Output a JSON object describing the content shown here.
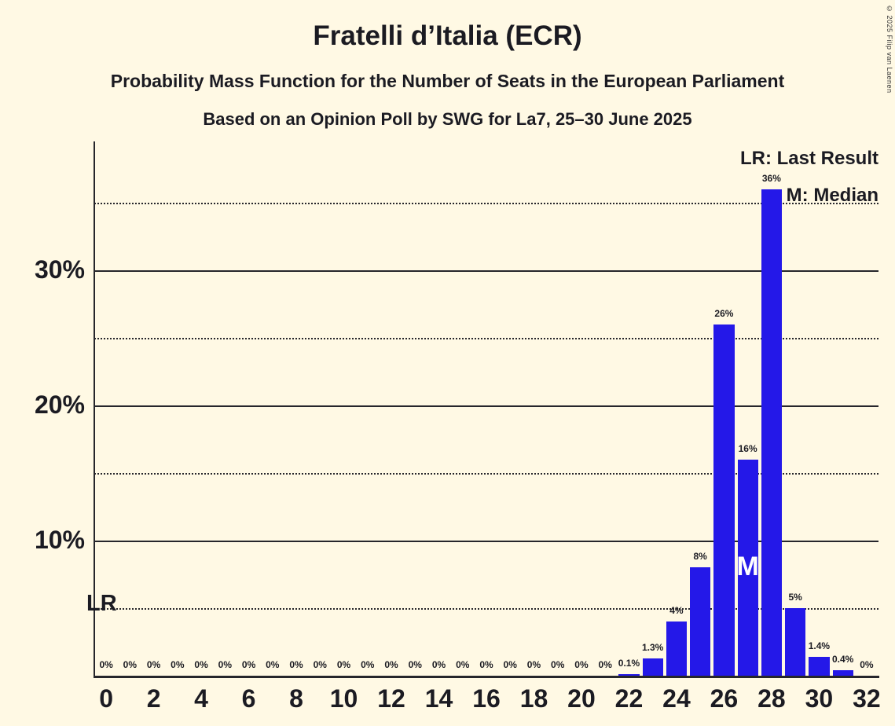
{
  "page": {
    "background": "#FFF9E4",
    "text_color": "#1B1B22",
    "copyright": "© 2025 Filip van Laenen"
  },
  "header": {
    "title": "Fratelli d’Italia (ECR)",
    "subtitle_line1": "Probability Mass Function for the Number of Seats in the European Parliament",
    "subtitle_line2": "Based on an Opinion Poll by SWG for La7, 25–30 June 2025"
  },
  "legend": {
    "last_result": "LR: Last Result",
    "median": "M: Median"
  },
  "chart_data": {
    "type": "bar",
    "title": "Fratelli d’Italia (ECR) — Probability Mass Function for the Number of Seats in the European Parliament",
    "xlabel": "Number of seats",
    "ylabel": "Probability mass",
    "ylim": [
      0,
      39.5
    ],
    "grid": true,
    "bar_color": "#2418E8",
    "categories": [
      0,
      1,
      2,
      3,
      4,
      5,
      6,
      7,
      8,
      9,
      10,
      11,
      12,
      13,
      14,
      15,
      16,
      17,
      18,
      19,
      20,
      21,
      22,
      23,
      24,
      25,
      26,
      27,
      28,
      29,
      30,
      31,
      32
    ],
    "values": [
      0,
      0,
      0,
      0,
      0,
      0,
      0,
      0,
      0,
      0,
      0,
      0,
      0,
      0,
      0,
      0,
      0,
      0,
      0,
      0,
      0,
      0,
      0.1,
      1.3,
      4,
      8,
      26,
      16,
      36,
      5,
      1.4,
      0.4,
      0
    ],
    "bar_labels": [
      "0%",
      "0%",
      "0%",
      "0%",
      "0%",
      "0%",
      "0%",
      "0%",
      "0%",
      "0%",
      "0%",
      "0%",
      "0%",
      "0%",
      "0%",
      "0%",
      "0%",
      "0%",
      "0%",
      "0%",
      "0%",
      "0%",
      "0.1%",
      "1.3%",
      "4%",
      "8%",
      "26%",
      "16%",
      "36%",
      "5%",
      "1.4%",
      "0.4%",
      "0%"
    ],
    "x_tick_labels": [
      "0",
      "2",
      "4",
      "6",
      "8",
      "10",
      "12",
      "14",
      "16",
      "18",
      "20",
      "22",
      "24",
      "26",
      "28",
      "30",
      "32"
    ],
    "y_solid_gridlines": [
      10,
      20,
      30
    ],
    "y_dotted_gridlines": [
      5,
      15,
      25,
      35
    ],
    "y_tick_labels": [
      {
        "value": 30,
        "label": "30%"
      },
      {
        "value": 20,
        "label": "20%"
      },
      {
        "value": 10,
        "label": "10%"
      }
    ],
    "markers": {
      "median_seat": 27,
      "median_symbol": "M",
      "last_result_symbol": "LR",
      "last_result_line_percent": 5
    }
  }
}
